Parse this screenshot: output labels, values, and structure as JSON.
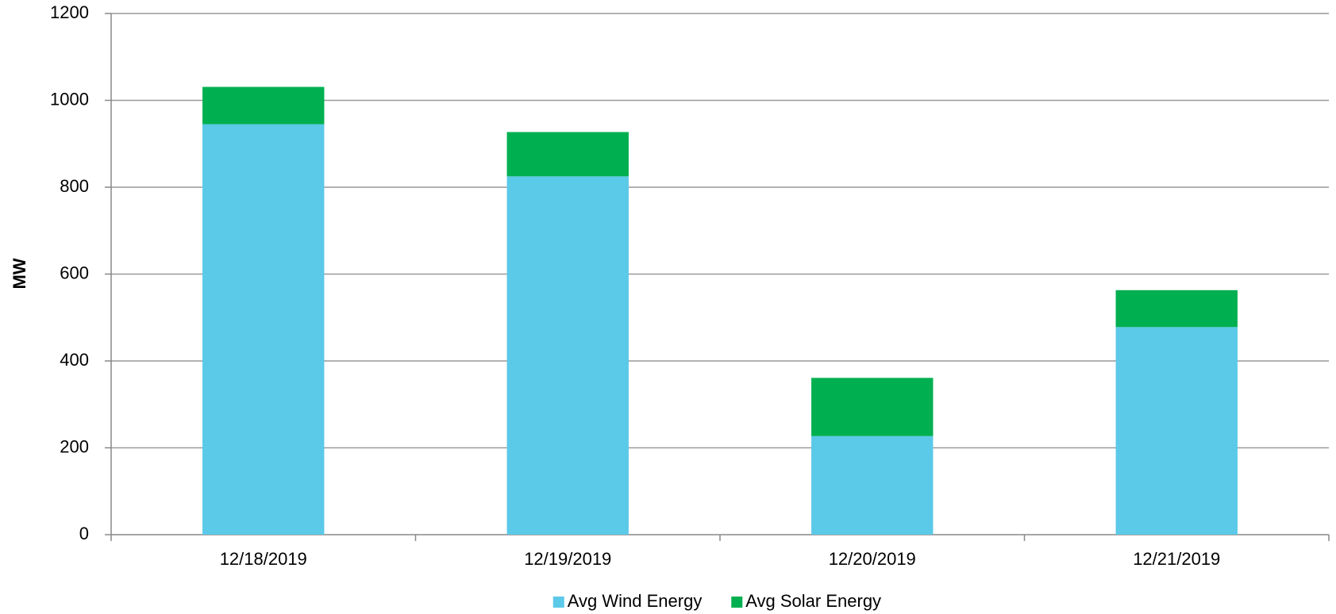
{
  "chart_data": {
    "type": "stacked_bar",
    "y_label": "MW",
    "categories": [
      "12/18/2019",
      "12/19/2019",
      "12/20/2019",
      "12/21/2019"
    ],
    "series": [
      {
        "name": "Avg Wind Energy",
        "color": "#5bc9e8",
        "values": [
          945,
          825,
          227,
          478
        ]
      },
      {
        "name": "Avg Solar Energy",
        "color": "#00b050",
        "values": [
          86,
          102,
          134,
          85
        ]
      }
    ],
    "ylim": [
      0,
      1200
    ],
    "yticks": [
      0,
      200,
      400,
      600,
      800,
      1000,
      1200
    ],
    "grid": true,
    "legend": "bottom"
  }
}
